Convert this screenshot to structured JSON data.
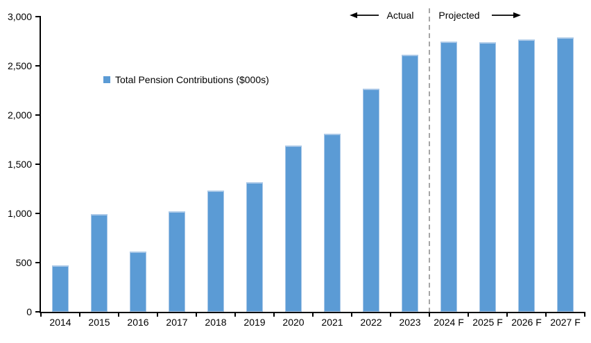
{
  "chart_data": {
    "type": "bar",
    "categories": [
      "2014",
      "2015",
      "2016",
      "2017",
      "2018",
      "2019",
      "2020",
      "2021",
      "2022",
      "2023",
      "2024 F",
      "2025 F",
      "2026 F",
      "2027 F"
    ],
    "values": [
      470,
      990,
      610,
      1020,
      1230,
      1320,
      1690,
      1810,
      2270,
      2610,
      2750,
      2740,
      2770,
      2790
    ],
    "legend": "Total Pension Contributions ($000s)",
    "ylim": [
      0,
      3000
    ],
    "ytick_values": [
      0,
      500,
      1000,
      1500,
      2000,
      2500,
      3000
    ],
    "ytick_labels": [
      "0",
      "500",
      "1,000",
      "1,500",
      "2,000",
      "2,500",
      "3,000"
    ],
    "grid": false,
    "legend_position": "inside-upper-left",
    "bar_color": "#5B9BD5",
    "bar_highlight_color": "#A8C7E7",
    "axis_color": "#000000",
    "divider_before_category": "2024 F",
    "divider_color": "#A6A6A6",
    "annotations": {
      "actual": "Actual",
      "projected": "Projected"
    }
  }
}
